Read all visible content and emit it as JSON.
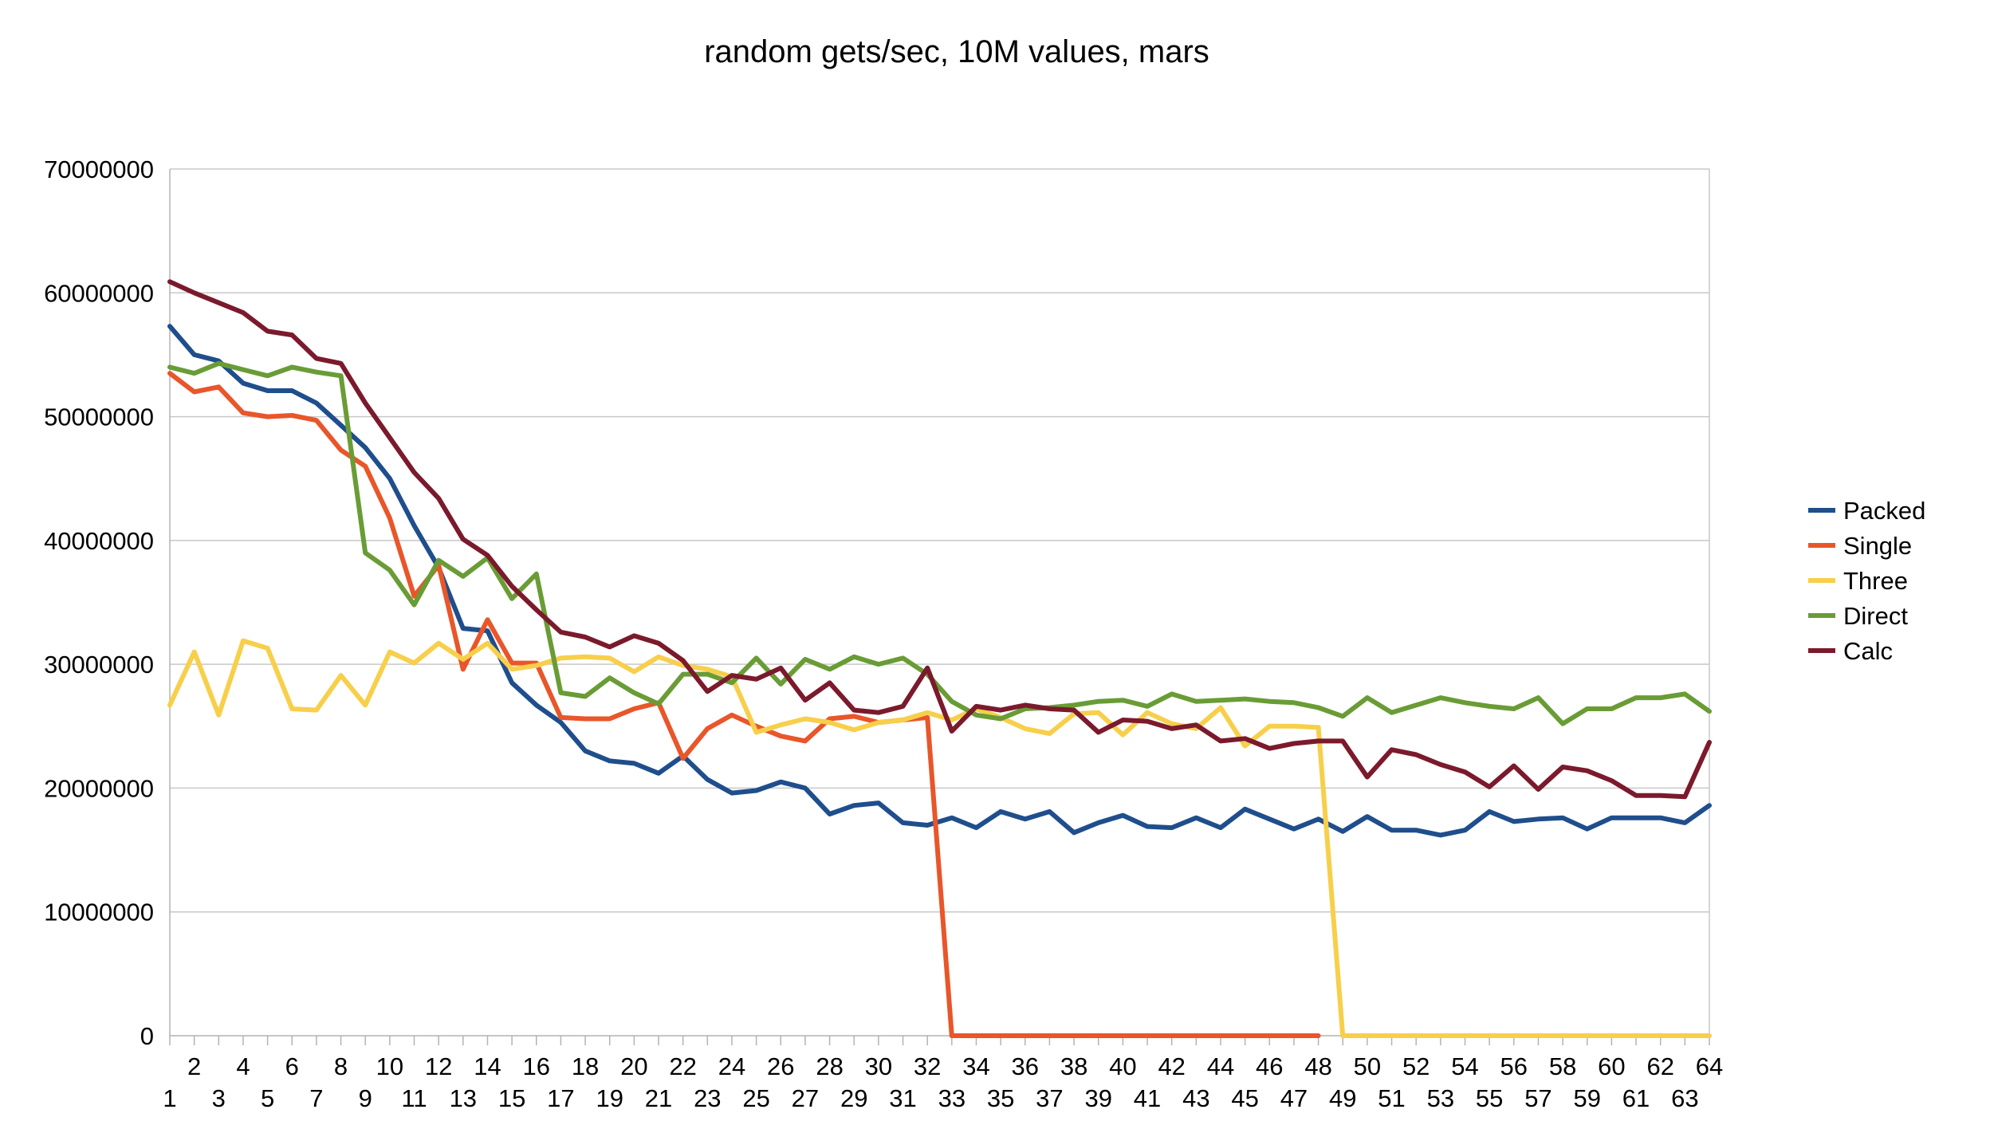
{
  "chart_data": {
    "type": "line",
    "title": "random gets/sec, 10M values, mars",
    "xlabel": "",
    "ylabel": "",
    "ylim": [
      0,
      70000000
    ],
    "yticks": [
      "70000000",
      "60000000",
      "50000000",
      "40000000",
      "30000000",
      "20000000",
      "10000000",
      "0"
    ],
    "ytick_values": [
      70000000,
      60000000,
      50000000,
      40000000,
      30000000,
      20000000,
      10000000,
      0
    ],
    "x": [
      1,
      2,
      3,
      4,
      5,
      6,
      7,
      8,
      9,
      10,
      11,
      12,
      13,
      14,
      15,
      16,
      17,
      18,
      19,
      20,
      21,
      22,
      23,
      24,
      25,
      26,
      27,
      28,
      29,
      30,
      31,
      32,
      33,
      34,
      35,
      36,
      37,
      38,
      39,
      40,
      41,
      42,
      43,
      44,
      45,
      46,
      47,
      48,
      49,
      50,
      51,
      52,
      53,
      54,
      55,
      56,
      57,
      58,
      59,
      60,
      61,
      62,
      63,
      64
    ],
    "grid": true,
    "legend_position": "right",
    "series": [
      {
        "name": "Packed",
        "color": "#1f4e8c",
        "values": [
          57300000,
          55000000,
          54500000,
          52700000,
          52100000,
          52100000,
          51100000,
          49300000,
          47500000,
          45000000,
          41200000,
          37800000,
          32900000,
          32700000,
          28500000,
          26700000,
          25300000,
          23000000,
          22200000,
          22000000,
          21200000,
          22600000,
          20700000,
          19600000,
          19800000,
          20500000,
          20000000,
          17900000,
          18600000,
          18800000,
          17200000,
          17000000,
          17600000,
          16800000,
          18100000,
          17500000,
          18100000,
          16400000,
          17200000,
          17800000,
          16900000,
          16800000,
          17600000,
          16800000,
          18300000,
          17500000,
          16700000,
          17500000,
          16500000,
          17700000,
          16600000,
          16600000,
          16200000,
          16600000,
          18100000,
          17300000,
          17500000,
          17600000,
          16700000,
          17600000,
          17600000,
          17600000,
          17200000,
          18600000
        ]
      },
      {
        "name": "Single",
        "color": "#e8562a",
        "values": [
          53500000,
          52000000,
          52400000,
          50300000,
          50000000,
          50100000,
          49700000,
          47300000,
          46000000,
          41800000,
          35500000,
          38000000,
          29600000,
          33600000,
          30100000,
          30100000,
          25700000,
          25600000,
          25600000,
          26400000,
          26900000,
          22400000,
          24800000,
          25900000,
          25000000,
          24200000,
          23800000,
          25600000,
          25800000,
          25300000,
          25500000,
          25700000,
          0,
          0,
          0,
          0,
          0,
          0,
          0,
          0,
          0,
          0,
          0,
          0,
          0,
          0,
          0,
          0,
          null,
          null,
          null,
          null,
          null,
          null,
          null,
          null,
          null,
          null,
          null,
          null,
          null,
          null,
          null,
          null
        ]
      },
      {
        "name": "Three",
        "color": "#f7cf4a",
        "values": [
          26700000,
          31000000,
          25900000,
          31900000,
          31300000,
          26400000,
          26300000,
          29100000,
          26700000,
          31000000,
          30100000,
          31700000,
          30400000,
          31700000,
          29600000,
          29900000,
          30500000,
          30600000,
          30500000,
          29400000,
          30600000,
          29900000,
          29600000,
          29000000,
          24500000,
          25100000,
          25600000,
          25300000,
          24700000,
          25300000,
          25500000,
          26100000,
          25500000,
          26400000,
          25700000,
          24800000,
          24400000,
          26000000,
          26100000,
          24300000,
          26100000,
          25200000,
          24800000,
          26500000,
          23400000,
          25000000,
          25000000,
          24900000,
          0,
          0,
          0,
          0,
          0,
          0,
          0,
          0,
          0,
          0,
          0,
          0,
          0,
          0,
          0,
          0
        ]
      },
      {
        "name": "Direct",
        "color": "#6a9c36",
        "values": [
          54000000,
          53500000,
          54300000,
          53800000,
          53300000,
          54000000,
          53600000,
          53300000,
          39000000,
          37600000,
          34800000,
          38400000,
          37100000,
          38600000,
          35300000,
          37300000,
          27700000,
          27400000,
          28900000,
          27700000,
          26800000,
          29200000,
          29200000,
          28500000,
          30500000,
          28400000,
          30400000,
          29600000,
          30600000,
          30000000,
          30500000,
          29200000,
          27000000,
          25900000,
          25600000,
          26400000,
          26500000,
          26700000,
          27000000,
          27100000,
          26600000,
          27600000,
          27000000,
          27100000,
          27200000,
          27000000,
          26900000,
          26500000,
          25800000,
          27300000,
          26100000,
          26700000,
          27300000,
          26900000,
          26600000,
          26400000,
          27300000,
          25200000,
          26400000,
          26400000,
          27300000,
          27300000,
          27600000,
          26200000
        ]
      },
      {
        "name": "Calc",
        "color": "#7b1a2c",
        "values": [
          60900000,
          60000000,
          59200000,
          58400000,
          56900000,
          56600000,
          54700000,
          54300000,
          51100000,
          48300000,
          45500000,
          43400000,
          40100000,
          38800000,
          36300000,
          34400000,
          32600000,
          32200000,
          31400000,
          32300000,
          31700000,
          30300000,
          27800000,
          29100000,
          28800000,
          29700000,
          27100000,
          28500000,
          26300000,
          26100000,
          26600000,
          29700000,
          24600000,
          26600000,
          26300000,
          26700000,
          26400000,
          26300000,
          24500000,
          25500000,
          25400000,
          24800000,
          25100000,
          23800000,
          24000000,
          23200000,
          23600000,
          23800000,
          23800000,
          20900000,
          23100000,
          22700000,
          21900000,
          21300000,
          20100000,
          21800000,
          19900000,
          21700000,
          21400000,
          20600000,
          19400000,
          19400000,
          19300000,
          23700000
        ]
      }
    ]
  }
}
